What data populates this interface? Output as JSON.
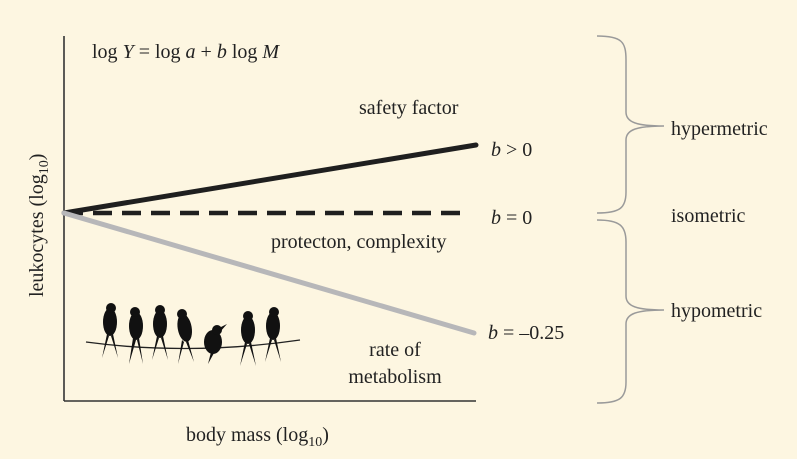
{
  "diagram": {
    "equation": {
      "prefix": "log ",
      "Y": "Y",
      "mid1": " = log ",
      "a": "a",
      "mid2": " + ",
      "b": "b",
      "mid3": " log ",
      "M": "M"
    },
    "labels": {
      "safety_factor": "safety factor",
      "protecton": "protecton, complexity",
      "rate1": "rate of",
      "rate2": "metabolism"
    },
    "lines": [
      {
        "id": "hypermetric",
        "b_var": "b",
        "b_text": " > 0",
        "slope": 0.25,
        "style": "solid",
        "color": "#1f1f1f"
      },
      {
        "id": "isometric",
        "b_var": "b",
        "b_text": " = 0",
        "slope": 0,
        "style": "dashed",
        "color": "#1f1f1f"
      },
      {
        "id": "hypometric",
        "b_var": "b",
        "b_text": " = –0.25",
        "slope": -0.25,
        "style": "solid",
        "color": "#b7b7b9"
      }
    ],
    "axes": {
      "ylabel_main": "leukocytes (log",
      "ylabel_sub": "10",
      "ylabel_close": ")",
      "xlabel_main": "body mass (log",
      "xlabel_sub": "10",
      "xlabel_close": ")"
    },
    "brackets": {
      "hypermetric": "hypermetric",
      "isometric": "isometric",
      "hypometric": "hypometric"
    },
    "illustration": "birds-on-wire"
  }
}
